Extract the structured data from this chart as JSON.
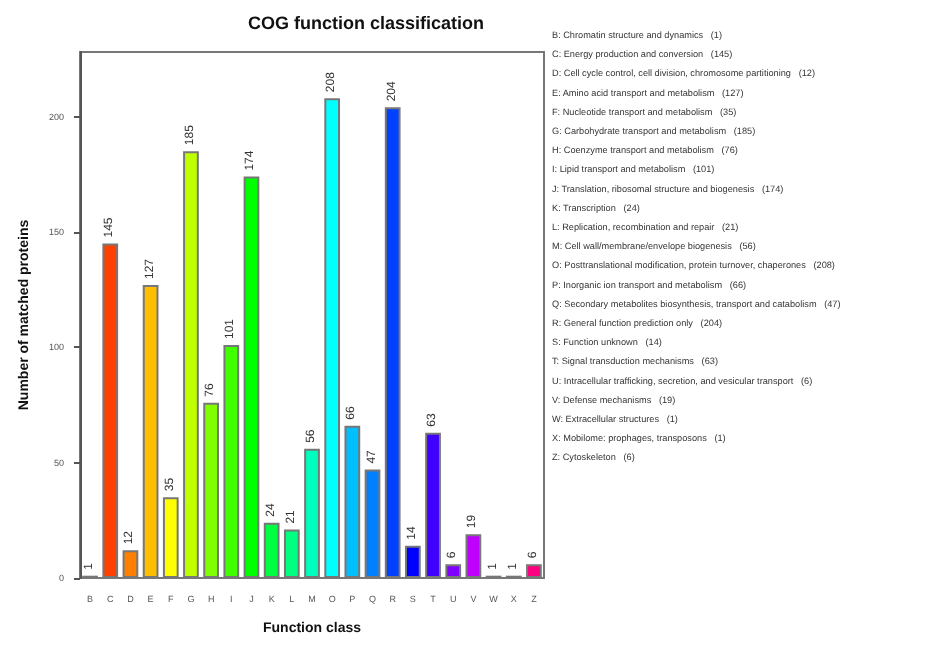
{
  "chart_data": {
    "type": "bar",
    "title": "COG function classification",
    "xlabel": "Function class",
    "ylabel": "Number of matched proteins",
    "categories": [
      "B",
      "C",
      "D",
      "E",
      "F",
      "G",
      "H",
      "I",
      "J",
      "K",
      "L",
      "M",
      "O",
      "P",
      "Q",
      "R",
      "S",
      "T",
      "U",
      "V",
      "W",
      "X",
      "Z"
    ],
    "values": [
      1,
      145,
      12,
      127,
      35,
      185,
      76,
      101,
      174,
      24,
      21,
      56,
      208,
      66,
      47,
      204,
      14,
      63,
      6,
      19,
      1,
      1,
      6
    ],
    "colors": [
      "#b22222",
      "#ff4000",
      "#ff8000",
      "#ffbf00",
      "#ffff00",
      "#bfff00",
      "#80ff00",
      "#40ff00",
      "#00ff00",
      "#00ff40",
      "#00ff80",
      "#00ffbf",
      "#00ffff",
      "#00bfff",
      "#0080ff",
      "#0040ff",
      "#0000ff",
      "#4000ff",
      "#8000ff",
      "#bf00ff",
      "#ff00ff",
      "#ff00bf",
      "#ff0080"
    ],
    "ylim": [
      0,
      228
    ],
    "yticks": [
      0,
      50,
      100,
      150,
      200
    ],
    "grid": false,
    "data_labels": true,
    "annotations": [
      "B: Chromatin structure and dynamics   (1)",
      "C: Energy production and conversion   (145)",
      "D: Cell cycle control, cell division, chromosome partitioning   (12)",
      "E: Amino acid transport and metabolism   (127)",
      "F: Nucleotide transport and metabolism   (35)",
      "G: Carbohydrate transport and metabolism   (185)",
      "H: Coenzyme transport and metabolism   (76)",
      "I: Lipid transport and metabolism   (101)",
      "J: Translation, ribosomal structure and biogenesis   (174)",
      "K: Transcription   (24)",
      "L: Replication, recombination and repair   (21)",
      "M: Cell wall/membrane/envelope biogenesis   (56)",
      "O: Posttranslational modification, protein turnover, chaperones   (208)",
      "P: Inorganic ion transport and metabolism   (66)",
      "Q: Secondary metabolites biosynthesis, transport and catabolism   (47)",
      "R: General function prediction only   (204)",
      "S: Function unknown   (14)",
      "T: Signal transduction mechanisms   (63)",
      "U: Intracellular trafficking, secretion, and vesicular transport   (6)",
      "V: Defense mechanisms   (19)",
      "W: Extracellular structures   (1)",
      "X: Mobilome: prophages, transposons   (1)",
      "Z: Cytoskeleton   (6)"
    ]
  }
}
